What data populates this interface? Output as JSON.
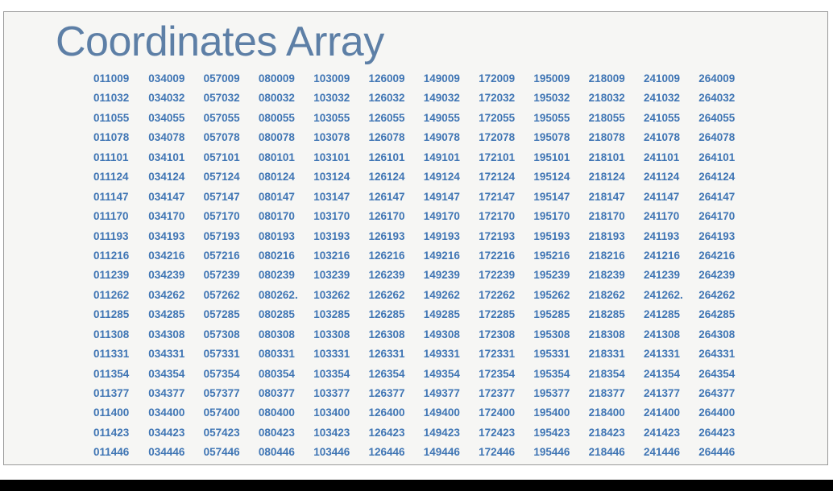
{
  "slide": {
    "title": "Coordinates Array"
  },
  "table": {
    "rows": [
      [
        "011009",
        "034009",
        "057009",
        "080009",
        "103009",
        "126009",
        "149009",
        "172009",
        "195009",
        "218009",
        "241009",
        "264009"
      ],
      [
        "011032",
        "034032",
        "057032",
        "080032",
        "103032",
        "126032",
        "149032",
        "172032",
        "195032",
        "218032",
        "241032",
        "264032"
      ],
      [
        "011055",
        "034055",
        "057055",
        "080055",
        "103055",
        "126055",
        "149055",
        "172055",
        "195055",
        "218055",
        "241055",
        "264055"
      ],
      [
        "011078",
        "034078",
        "057078",
        "080078",
        "103078",
        "126078",
        "149078",
        "172078",
        "195078",
        "218078",
        "241078",
        "264078"
      ],
      [
        "011101",
        "034101",
        "057101",
        "080101",
        "103101",
        "126101",
        "149101",
        "172101",
        "195101",
        "218101",
        "241101",
        "264101"
      ],
      [
        "011124",
        "034124",
        "057124",
        "080124",
        "103124",
        "126124",
        "149124",
        "172124",
        "195124",
        "218124",
        "241124",
        "264124"
      ],
      [
        "011147",
        "034147",
        "057147",
        "080147",
        "103147",
        "126147",
        "149147",
        "172147",
        "195147",
        "218147",
        "241147",
        "264147"
      ],
      [
        "011170",
        "034170",
        "057170",
        "080170",
        "103170",
        "126170",
        "149170",
        "172170",
        "195170",
        "218170",
        "241170",
        "264170"
      ],
      [
        "011193",
        "034193",
        "057193",
        "080193",
        "103193",
        "126193",
        "149193",
        "172193",
        "195193",
        "218193",
        "241193",
        "264193"
      ],
      [
        "011216",
        "034216",
        "057216",
        "080216",
        "103216",
        "126216",
        "149216",
        "172216",
        "195216",
        "218216",
        "241216",
        "264216"
      ],
      [
        "011239",
        "034239",
        "057239",
        "080239",
        "103239",
        "126239",
        "149239",
        "172239",
        "195239",
        "218239",
        "241239",
        "264239"
      ],
      [
        "011262",
        "034262",
        "057262",
        "080262.",
        "103262",
        "126262",
        "149262",
        "172262",
        "195262",
        "218262",
        "241262.",
        "264262"
      ],
      [
        "011285",
        "034285",
        "057285",
        "080285",
        "103285",
        "126285",
        "149285",
        "172285",
        "195285",
        "218285",
        "241285",
        "264285"
      ],
      [
        "011308",
        "034308",
        "057308",
        "080308",
        "103308",
        "126308",
        "149308",
        "172308",
        "195308",
        "218308",
        "241308",
        "264308"
      ],
      [
        "011331",
        "034331",
        "057331",
        "080331",
        "103331",
        "126331",
        "149331",
        "172331",
        "195331",
        "218331",
        "241331",
        "264331"
      ],
      [
        "011354",
        "034354",
        "057354",
        "080354",
        "103354",
        "126354",
        "149354",
        "172354",
        "195354",
        "218354",
        "241354",
        "264354"
      ],
      [
        "011377",
        "034377",
        "057377",
        "080377",
        "103377",
        "126377",
        "149377",
        "172377",
        "195377",
        "218377",
        "241377",
        "264377"
      ],
      [
        "011400",
        "034400",
        "057400",
        "080400",
        "103400",
        "126400",
        "149400",
        "172400",
        "195400",
        "218400",
        "241400",
        "264400"
      ],
      [
        "011423",
        "034423",
        "057423",
        "080423",
        "103423",
        "126423",
        "149423",
        "172423",
        "195423",
        "218423",
        "241423",
        "264423"
      ],
      [
        "011446",
        "034446",
        "057446",
        "080446",
        "103446",
        "126446",
        "149446",
        "172446",
        "195446",
        "218446",
        "241446",
        "264446"
      ]
    ]
  },
  "colors": {
    "title": "#5d7fa6",
    "cell_text": "#3f75b4",
    "slide_background": "#f6f6f4",
    "slide_border": "#9a9a9a"
  }
}
